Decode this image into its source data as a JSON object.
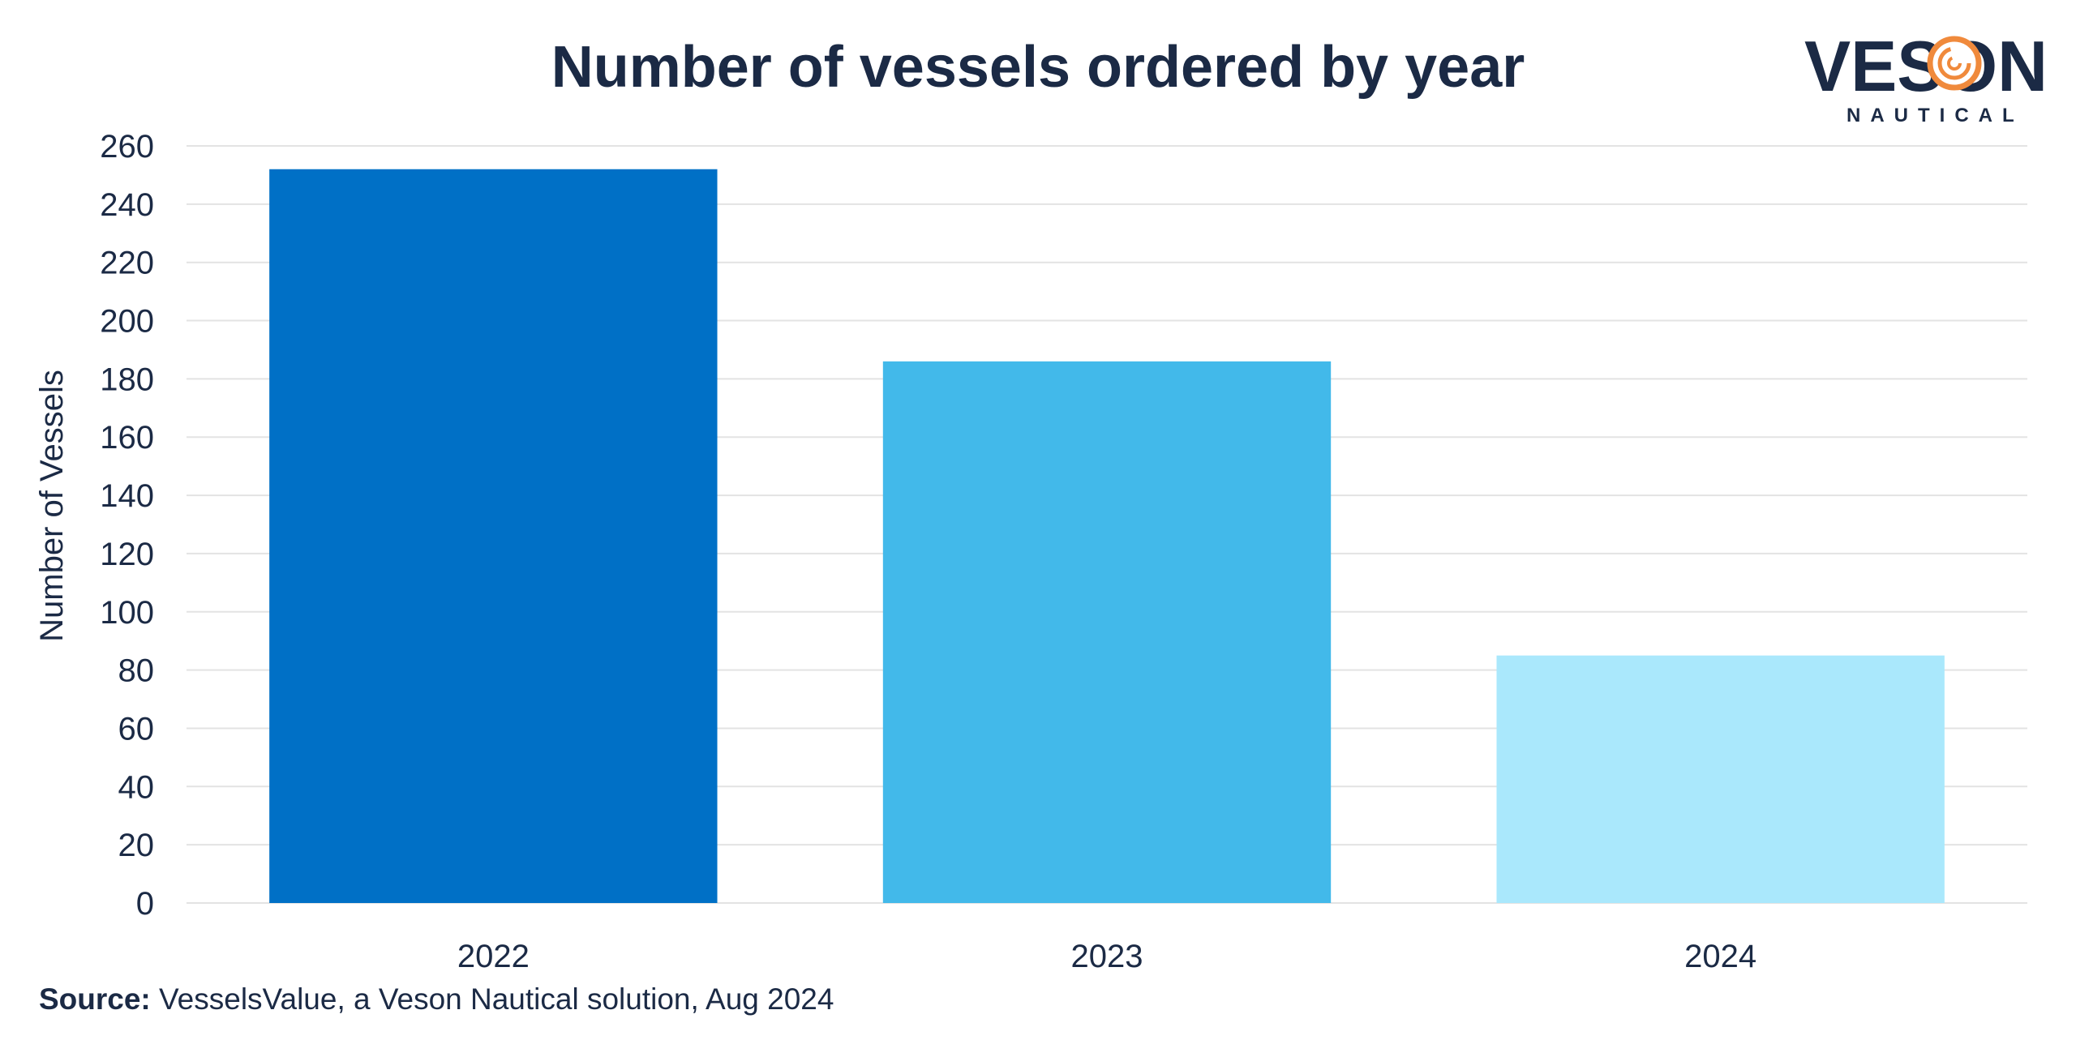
{
  "chart_data": {
    "type": "bar",
    "title": "Number of vessels ordered by year",
    "categories": [
      "2022",
      "2023",
      "2024"
    ],
    "values": [
      252,
      186,
      85
    ],
    "colors": [
      "#0070c6",
      "#42b9ea",
      "#aae8fc"
    ],
    "xlabel": "",
    "ylabel": "Number of Vessels",
    "ylim": [
      0,
      260
    ],
    "yticks": [
      0,
      20,
      40,
      60,
      80,
      100,
      120,
      140,
      160,
      180,
      200,
      220,
      240,
      260
    ],
    "grid": true,
    "legend": "none"
  },
  "logo": {
    "brand": "VESON",
    "tagline": "NAUTICAL",
    "text_color": "#1b2a45",
    "accent_color": "#f08a3c"
  },
  "source": {
    "label": "Source:",
    "text": "VesselsValue, a Veson Nautical solution, Aug 2024"
  }
}
